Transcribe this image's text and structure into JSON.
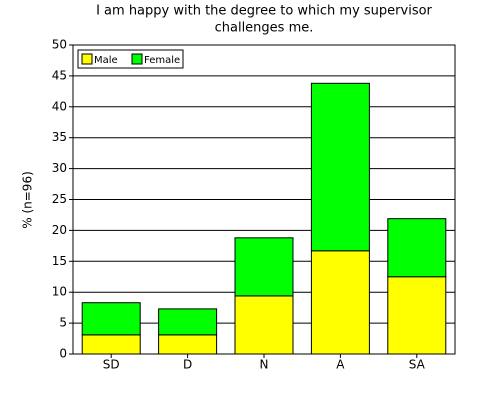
{
  "chart_data": {
    "type": "stacked-bar",
    "title": [
      "I am happy with the degree to which my supervisor",
      "challenges me."
    ],
    "y_label": "% (n=96)",
    "categories": [
      "SD",
      "D",
      "N",
      "A",
      "SA"
    ],
    "series": [
      {
        "name": "Male",
        "color": "#ffff00",
        "values": [
          3.1,
          3.1,
          9.4,
          16.7,
          12.5
        ]
      },
      {
        "name": "Female",
        "color": "#00ff00",
        "values": [
          5.2,
          4.2,
          9.4,
          27.1,
          9.4
        ]
      }
    ],
    "ylim": [
      0,
      50
    ],
    "yticks": [
      0,
      5,
      10,
      15,
      20,
      25,
      30,
      35,
      40,
      45,
      50
    ],
    "grid": true,
    "legend": "top-left"
  }
}
